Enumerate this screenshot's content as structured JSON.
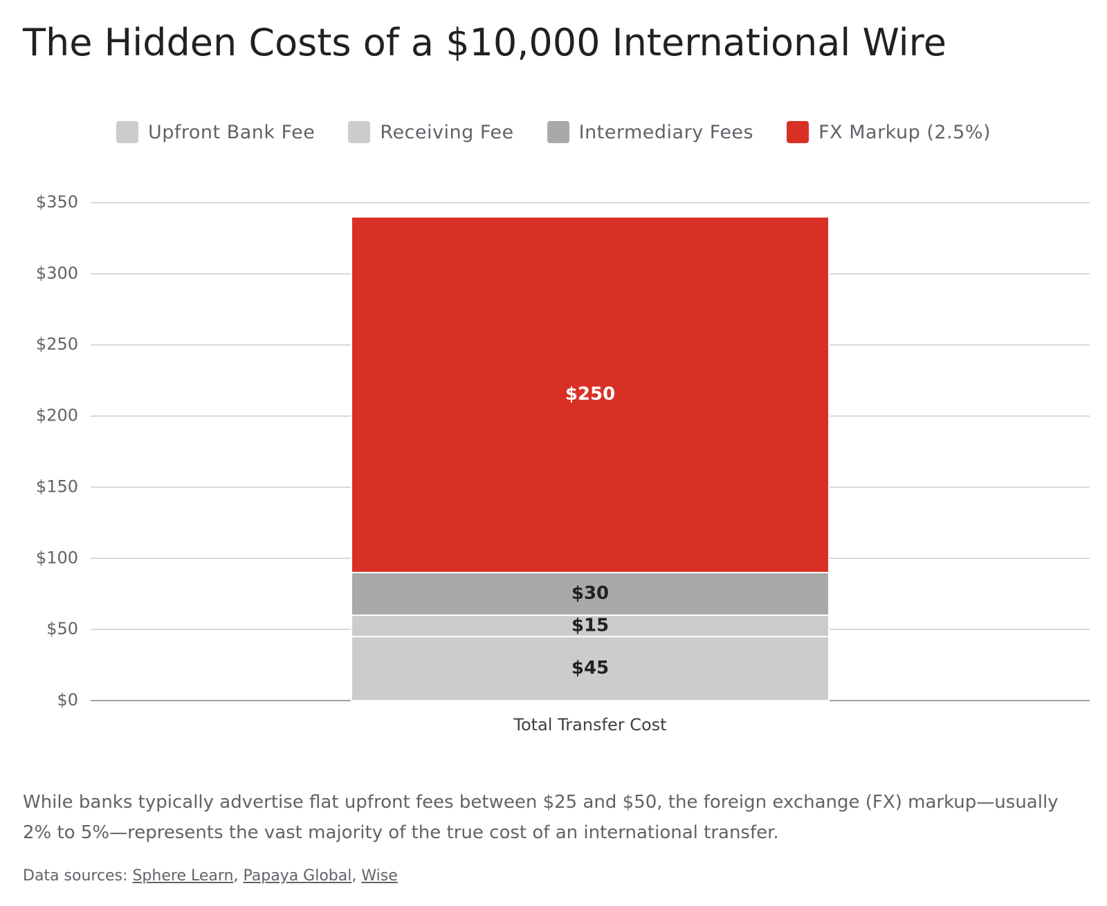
{
  "chart_data": {
    "type": "stacked_bar",
    "title": "The Hidden Costs of a $10,000 International Wire",
    "categories": [
      "Total Transfer Cost"
    ],
    "series": [
      {
        "name": "Upfront Bank Fee",
        "color": "#cccccc",
        "values": [
          45
        ],
        "value_labels": [
          "$45"
        ]
      },
      {
        "name": "Receiving Fee",
        "color": "#cccccc",
        "values": [
          15
        ],
        "value_labels": [
          "$15"
        ]
      },
      {
        "name": "Intermediary Fees",
        "color": "#a9a9a9",
        "values": [
          30
        ],
        "value_labels": [
          "$30"
        ]
      },
      {
        "name": "FX Markup (2.5%)",
        "color": "#d93025",
        "values": [
          250
        ],
        "value_labels": [
          "$250"
        ]
      }
    ],
    "ylim": [
      0,
      350
    ],
    "yticks": [
      {
        "value": 0,
        "label": "$0"
      },
      {
        "value": 50,
        "label": "$50"
      },
      {
        "value": 100,
        "label": "$100"
      },
      {
        "value": 150,
        "label": "$150"
      },
      {
        "value": 200,
        "label": "$200"
      },
      {
        "value": 250,
        "label": "$250"
      },
      {
        "value": 300,
        "label": "$300"
      },
      {
        "value": 350,
        "label": "$350"
      }
    ],
    "grid": true,
    "legend": "top",
    "note": "While banks typically advertise flat upfront fees between $25 and $50, the foreign exchange (FX) markup—usually 2% to 5%—represents the vast majority of the true cost of an international transfer.",
    "sources_label": "Data sources:",
    "source_separator": ",",
    "sources": [
      "Sphere Learn",
      "Papaya Global",
      "Wise"
    ]
  }
}
